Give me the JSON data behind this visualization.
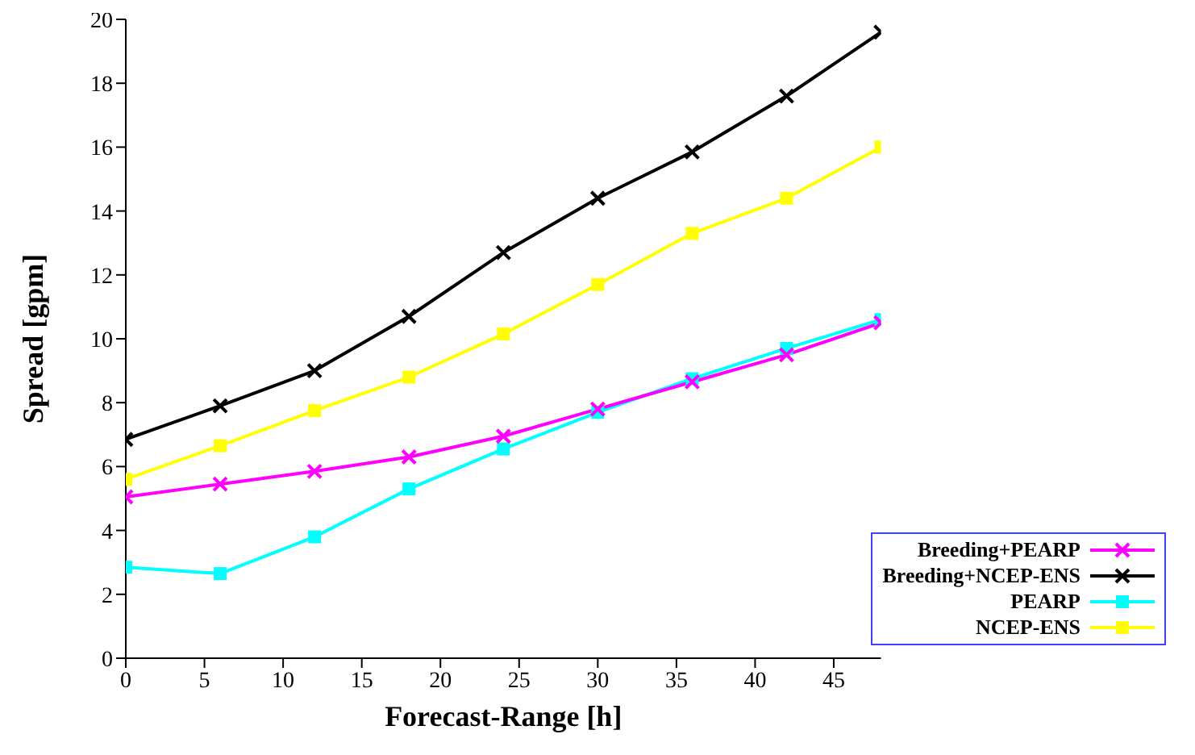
{
  "chart_data": {
    "type": "line",
    "xlabel": "Forecast-Range [h]",
    "ylabel": "Spread [gpm]",
    "x": [
      0,
      6,
      12,
      18,
      24,
      30,
      36,
      42,
      48
    ],
    "xlim": [
      0,
      48
    ],
    "xticks": [
      0,
      5,
      10,
      15,
      20,
      25,
      30,
      35,
      40,
      45
    ],
    "ylim": [
      0,
      20
    ],
    "yticks": [
      0,
      2,
      4,
      6,
      8,
      10,
      12,
      14,
      16,
      18,
      20
    ],
    "legend": "bottom right",
    "grid": false,
    "line_style": "solid",
    "series": [
      {
        "name": "Breeding+PEARP",
        "color": "#ff00ff",
        "marker": "cross",
        "values": [
          5.05,
          5.45,
          5.85,
          6.3,
          6.95,
          7.8,
          8.65,
          9.5,
          10.5
        ]
      },
      {
        "name": "Breeding+NCEP-ENS",
        "color": "#000000",
        "marker": "cross",
        "values": [
          6.85,
          7.9,
          9.0,
          10.7,
          12.7,
          14.4,
          15.85,
          17.6,
          19.6
        ]
      },
      {
        "name": "PEARP",
        "color": "#00ffff",
        "marker": "square",
        "values": [
          2.85,
          2.65,
          3.8,
          5.3,
          6.55,
          7.7,
          8.75,
          9.7,
          10.6
        ]
      },
      {
        "name": "NCEP-ENS",
        "color": "#ffff00",
        "marker": "square",
        "values": [
          5.6,
          6.65,
          7.75,
          8.8,
          10.15,
          11.7,
          13.3,
          14.4,
          16.0
        ]
      }
    ]
  }
}
